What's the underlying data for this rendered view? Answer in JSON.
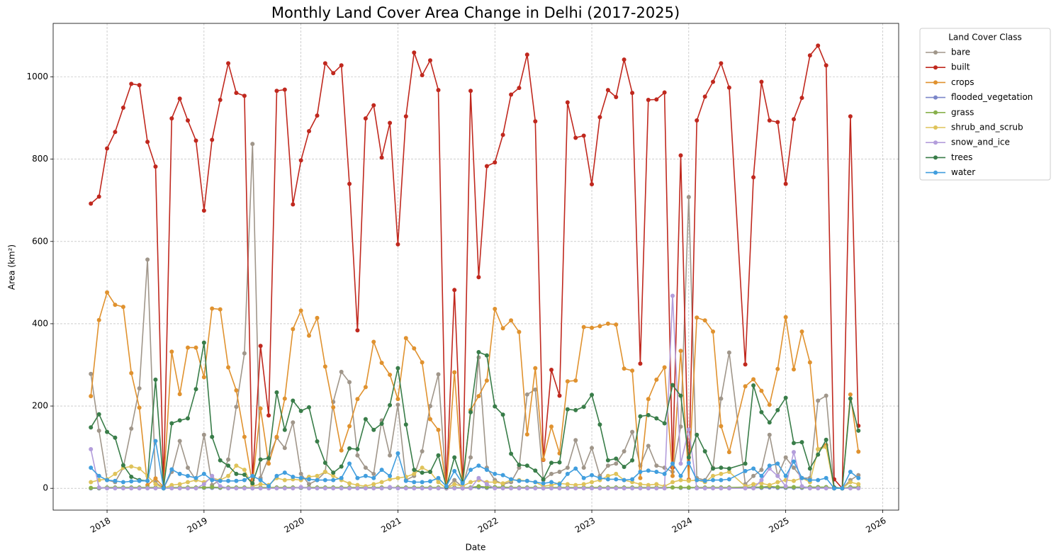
{
  "chart_data": {
    "type": "line",
    "title": "Monthly Land Cover Area Change in Delhi (2017-2025)",
    "x_label": "Date",
    "y_label": "Area (km²)",
    "legend_title": "Land Cover Class",
    "legend_position": "outside upper right",
    "grid": true,
    "xlim": [
      2017.444,
      2026.165
    ],
    "xticks": [
      2018,
      2019,
      2020,
      2021,
      2022,
      2023,
      2024,
      2025,
      2026
    ],
    "ylim": [
      -53,
      1130
    ],
    "yticks": [
      0,
      200,
      400,
      600,
      800,
      1000
    ],
    "x": [
      2017.833,
      2017.917,
      2018,
      2018.083,
      2018.167,
      2018.25,
      2018.333,
      2018.417,
      2018.5,
      2018.583,
      2018.667,
      2018.75,
      2018.833,
      2018.917,
      2019,
      2019.083,
      2019.167,
      2019.25,
      2019.333,
      2019.417,
      2019.5,
      2019.583,
      2019.667,
      2019.75,
      2019.833,
      2019.917,
      2020,
      2020.083,
      2020.167,
      2020.25,
      2020.333,
      2020.417,
      2020.5,
      2020.583,
      2020.667,
      2020.75,
      2020.833,
      2020.917,
      2021,
      2021.083,
      2021.167,
      2021.25,
      2021.333,
      2021.417,
      2021.5,
      2021.583,
      2021.667,
      2021.75,
      2021.833,
      2021.917,
      2022,
      2022.083,
      2022.167,
      2022.25,
      2022.333,
      2022.417,
      2022.5,
      2022.583,
      2022.667,
      2022.75,
      2022.833,
      2022.917,
      2023,
      2023.083,
      2023.167,
      2023.25,
      2023.333,
      2023.417,
      2023.5,
      2023.583,
      2023.667,
      2023.75,
      2023.833,
      2023.917,
      2024,
      2024.083,
      2024.167,
      2024.25,
      2024.333,
      2024.417,
      2024.583,
      2024.667,
      2024.75,
      2024.833,
      2024.917,
      2025,
      2025.083,
      2025.167,
      2025.25,
      2025.333,
      2025.417,
      2025.5,
      2025.583,
      2025.667,
      2025.75
    ],
    "series": [
      {
        "name": "bare",
        "color": "#a0968a",
        "values": [
          278,
          140,
          20,
          15,
          50,
          145,
          243,
          556,
          15,
          0,
          40,
          115,
          50,
          20,
          130,
          8,
          20,
          70,
          198,
          328,
          837,
          25,
          75,
          123,
          98,
          160,
          35,
          10,
          20,
          40,
          210,
          283,
          258,
          80,
          50,
          35,
          165,
          80,
          203,
          20,
          30,
          90,
          200,
          277,
          0,
          20,
          3,
          75,
          318,
          50,
          20,
          10,
          15,
          50,
          228,
          240,
          20,
          35,
          40,
          50,
          117,
          50,
          98,
          30,
          55,
          60,
          90,
          137,
          55,
          103,
          55,
          50,
          40,
          150,
          708,
          25,
          20,
          50,
          218,
          330,
          10,
          30,
          45,
          130,
          30,
          75,
          50,
          25,
          25,
          213,
          225,
          2,
          0,
          20,
          32
        ]
      },
      {
        "name": "built",
        "color": "#c0281e",
        "values": [
          692,
          709,
          826,
          866,
          925,
          983,
          980,
          842,
          782,
          5,
          899,
          947,
          894,
          845,
          675,
          847,
          944,
          1033,
          961,
          954,
          20,
          346,
          177,
          966,
          969,
          690,
          797,
          868,
          906,
          1033,
          1009,
          1028,
          740,
          384,
          899,
          931,
          804,
          888,
          593,
          904,
          1059,
          1004,
          1040,
          968,
          0,
          482,
          0,
          966,
          513,
          783,
          792,
          859,
          957,
          973,
          1054,
          892,
          69,
          288,
          225,
          938,
          852,
          857,
          739,
          902,
          968,
          951,
          1042,
          961,
          303,
          944,
          945,
          962,
          50,
          809,
          21,
          894,
          952,
          988,
          1033,
          974,
          301,
          756,
          988,
          894,
          890,
          740,
          897,
          949,
          1052,
          1076,
          1028,
          22,
          0,
          904,
          152
        ]
      },
      {
        "name": "crops",
        "color": "#e0922f",
        "values": [
          224,
          409,
          476,
          446,
          441,
          280,
          196,
          8,
          24,
          3,
          332,
          229,
          342,
          342,
          270,
          437,
          435,
          294,
          238,
          125,
          10,
          194,
          60,
          125,
          218,
          387,
          432,
          371,
          414,
          296,
          197,
          92,
          151,
          217,
          246,
          356,
          305,
          276,
          217,
          365,
          340,
          306,
          168,
          142,
          0,
          282,
          5,
          190,
          224,
          262,
          436,
          389,
          408,
          380,
          131,
          292,
          70,
          150,
          85,
          260,
          262,
          392,
          390,
          394,
          400,
          398,
          291,
          286,
          25,
          217,
          264,
          294,
          30,
          334,
          20,
          415,
          408,
          381,
          151,
          88,
          248,
          265,
          237,
          203,
          290,
          416,
          289,
          381,
          306,
          95,
          105,
          0,
          0,
          228,
          89
        ]
      },
      {
        "name": "flooded_vegetation",
        "color": "#7b86c9",
        "values": [
          0,
          0,
          1,
          1,
          1,
          1,
          1,
          1,
          1,
          0,
          1,
          1,
          1,
          1,
          1,
          1,
          1,
          1,
          1,
          1,
          0,
          1,
          1,
          1,
          1,
          1,
          1,
          1,
          1,
          1,
          1,
          1,
          1,
          1,
          1,
          1,
          1,
          1,
          1,
          1,
          1,
          1,
          1,
          1,
          0,
          1,
          0,
          1,
          2,
          1,
          1,
          1,
          1,
          1,
          1,
          1,
          0,
          1,
          1,
          1,
          1,
          1,
          1,
          1,
          1,
          1,
          1,
          1,
          1,
          1,
          1,
          1,
          2,
          1,
          1,
          1,
          1,
          1,
          1,
          1,
          1,
          1,
          1,
          2,
          1,
          1,
          1,
          1,
          1,
          1,
          1,
          0,
          0,
          1,
          1
        ]
      },
      {
        "name": "grass",
        "color": "#88b04b",
        "values": [
          1,
          1,
          2,
          2,
          2,
          2,
          2,
          2,
          2,
          0,
          2,
          2,
          2,
          2,
          2,
          3,
          2,
          2,
          2,
          2,
          1,
          2,
          2,
          2,
          2,
          2,
          2,
          2,
          2,
          2,
          2,
          2,
          2,
          2,
          2,
          2,
          2,
          2,
          2,
          2,
          2,
          2,
          2,
          2,
          0,
          2,
          1,
          2,
          5,
          3,
          3,
          3,
          2,
          2,
          2,
          2,
          1,
          2,
          2,
          2,
          2,
          2,
          2,
          2,
          2,
          2,
          2,
          2,
          2,
          2,
          2,
          2,
          2,
          2,
          2,
          2,
          2,
          2,
          2,
          2,
          3,
          3,
          3,
          5,
          3,
          3,
          3,
          3,
          3,
          3,
          3,
          0,
          0,
          3,
          3
        ]
      },
      {
        "name": "shrub_and_scrub",
        "color": "#dfc35a",
        "values": [
          15,
          20,
          22,
          35,
          50,
          53,
          48,
          30,
          10,
          0,
          8,
          10,
          15,
          20,
          15,
          25,
          20,
          30,
          55,
          45,
          5,
          10,
          8,
          25,
          20,
          22,
          20,
          28,
          30,
          40,
          30,
          20,
          12,
          8,
          5,
          10,
          15,
          22,
          25,
          28,
          35,
          50,
          40,
          15,
          0,
          10,
          5,
          15,
          20,
          15,
          15,
          12,
          20,
          20,
          18,
          15,
          5,
          8,
          12,
          10,
          8,
          10,
          15,
          20,
          30,
          35,
          20,
          15,
          10,
          8,
          10,
          5,
          15,
          20,
          18,
          20,
          15,
          30,
          35,
          40,
          5,
          10,
          12,
          8,
          15,
          20,
          18,
          25,
          15,
          95,
          100,
          0,
          0,
          15,
          10
        ]
      },
      {
        "name": "snow_and_ice",
        "color": "#b39ddb",
        "values": [
          95,
          2,
          0,
          0,
          0,
          0,
          0,
          0,
          0,
          0,
          0,
          0,
          0,
          0,
          10,
          30,
          5,
          0,
          0,
          0,
          0,
          0,
          0,
          0,
          0,
          0,
          3,
          0,
          0,
          0,
          0,
          0,
          0,
          0,
          0,
          0,
          0,
          3,
          0,
          0,
          0,
          0,
          0,
          0,
          0,
          0,
          0,
          0,
          25,
          10,
          0,
          0,
          0,
          0,
          0,
          0,
          0,
          0,
          0,
          0,
          0,
          0,
          0,
          0,
          0,
          0,
          0,
          0,
          0,
          0,
          0,
          0,
          468,
          60,
          143,
          0,
          0,
          0,
          0,
          0,
          0,
          0,
          20,
          48,
          30,
          5,
          88,
          5,
          0,
          0,
          0,
          0,
          0,
          0,
          0
        ]
      },
      {
        "name": "trees",
        "color": "#397d49",
        "values": [
          148,
          180,
          137,
          123,
          56,
          28,
          20,
          18,
          264,
          2,
          158,
          165,
          170,
          241,
          354,
          125,
          68,
          55,
          35,
          33,
          12,
          70,
          73,
          233,
          142,
          213,
          188,
          197,
          114,
          62,
          38,
          53,
          97,
          95,
          168,
          142,
          157,
          202,
          292,
          155,
          45,
          38,
          40,
          80,
          3,
          75,
          15,
          185,
          331,
          323,
          199,
          179,
          84,
          57,
          55,
          43,
          22,
          62,
          63,
          192,
          190,
          198,
          227,
          155,
          68,
          72,
          52,
          68,
          175,
          178,
          170,
          158,
          251,
          225,
          75,
          130,
          90,
          48,
          50,
          48,
          60,
          250,
          185,
          160,
          190,
          220,
          110,
          112,
          48,
          82,
          118,
          2,
          0,
          218,
          140
        ]
      },
      {
        "name": "water",
        "color": "#419ede",
        "values": [
          50,
          30,
          20,
          18,
          15,
          17,
          18,
          18,
          115,
          0,
          46,
          35,
          30,
          25,
          35,
          20,
          18,
          18,
          18,
          20,
          30,
          20,
          5,
          30,
          38,
          28,
          25,
          22,
          20,
          20,
          20,
          25,
          60,
          25,
          30,
          25,
          45,
          30,
          85,
          18,
          15,
          15,
          17,
          25,
          5,
          42,
          12,
          45,
          55,
          45,
          35,
          32,
          22,
          18,
          18,
          15,
          12,
          15,
          10,
          35,
          48,
          25,
          32,
          25,
          22,
          22,
          20,
          22,
          40,
          43,
          40,
          35,
          60,
          30,
          62,
          20,
          18,
          20,
          20,
          22,
          42,
          48,
          30,
          55,
          60,
          30,
          65,
          25,
          20,
          20,
          25,
          0,
          0,
          40,
          25
        ]
      }
    ]
  }
}
